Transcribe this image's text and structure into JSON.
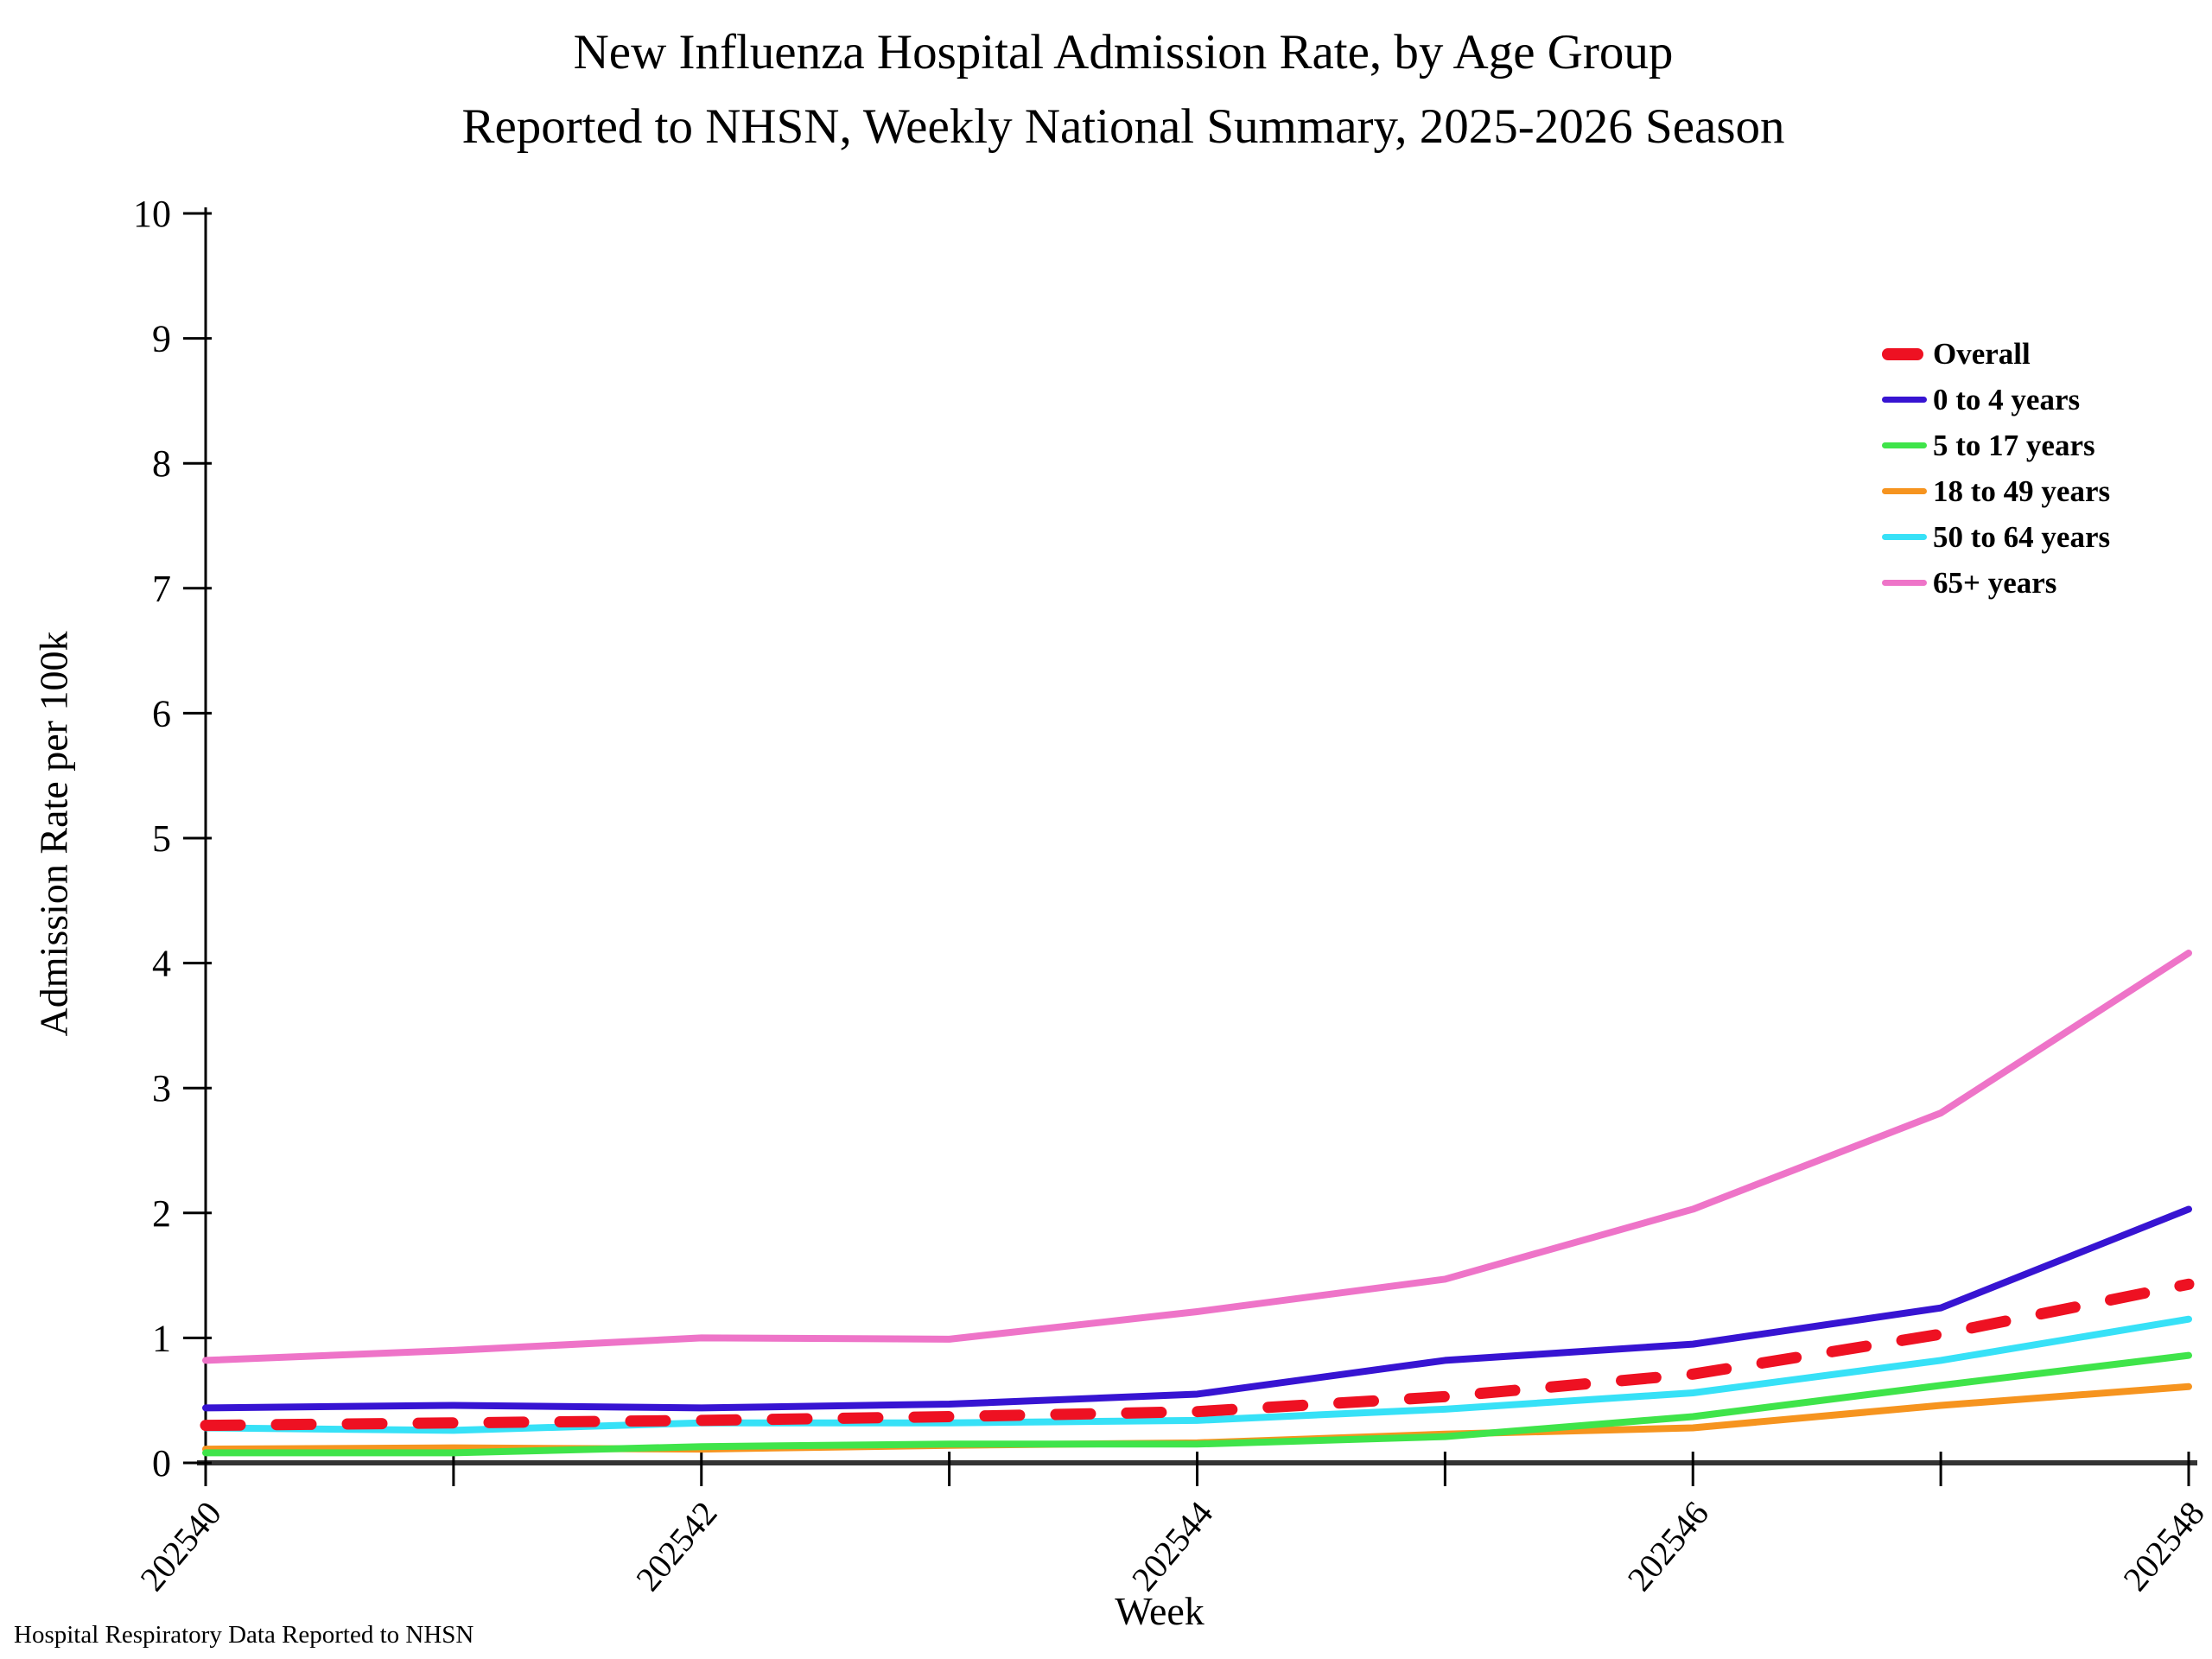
{
  "title_line1": "New Influenza Hospital Admission Rate, by Age Group",
  "title_line2": "Reported to NHSN, Weekly National Summary, 2025-2026 Season",
  "footer_note": "Hospital Respiratory Data Reported to NHSN",
  "chart_data": {
    "type": "line",
    "title": "New Influenza Hospital Admission Rate, by Age Group — Reported to NHSN, Weekly National Summary, 2025-2026 Season",
    "xlabel": "Week",
    "ylabel": "Admission Rate per 100k",
    "ylim": [
      0,
      10
    ],
    "yticks": [
      0,
      1,
      2,
      3,
      4,
      5,
      6,
      7,
      8,
      9,
      10
    ],
    "x": [
      202540,
      202541,
      202542,
      202543,
      202544,
      202545,
      202546,
      202547,
      202548
    ],
    "xtick_labels_shown": [
      "202540",
      "202542",
      "202544",
      "202546",
      "202548"
    ],
    "xtick_label_every": 2,
    "grid": "off",
    "legend_position": "top-right-inside",
    "series": [
      {
        "name": "Overall",
        "color": "#ee1122",
        "style": "dashed",
        "values": [
          0.3,
          0.32,
          0.34,
          0.37,
          0.41,
          0.53,
          0.71,
          1.03,
          1.43
        ]
      },
      {
        "name": "0 to 4 years",
        "color": "#3714d2",
        "style": "solid",
        "values": [
          0.44,
          0.46,
          0.44,
          0.47,
          0.55,
          0.82,
          0.95,
          1.24,
          2.03
        ]
      },
      {
        "name": "5 to 17 years",
        "color": "#3fe44a",
        "style": "solid",
        "values": [
          0.08,
          0.08,
          0.13,
          0.15,
          0.15,
          0.21,
          0.37,
          0.62,
          0.86
        ]
      },
      {
        "name": "18 to 49 years",
        "color": "#f6941f",
        "style": "solid",
        "values": [
          0.11,
          0.12,
          0.11,
          0.14,
          0.16,
          0.23,
          0.28,
          0.46,
          0.61
        ]
      },
      {
        "name": "50 to 64 years",
        "color": "#37e1f7",
        "style": "solid",
        "values": [
          0.28,
          0.26,
          0.32,
          0.32,
          0.34,
          0.43,
          0.56,
          0.82,
          1.15
        ]
      },
      {
        "name": "65+ years",
        "color": "#ee74c8",
        "style": "solid",
        "values": [
          0.82,
          0.9,
          1.0,
          0.99,
          1.21,
          1.47,
          2.03,
          2.8,
          4.08
        ]
      }
    ],
    "axis_color": "#000000",
    "x_axis_color": "#333333"
  }
}
